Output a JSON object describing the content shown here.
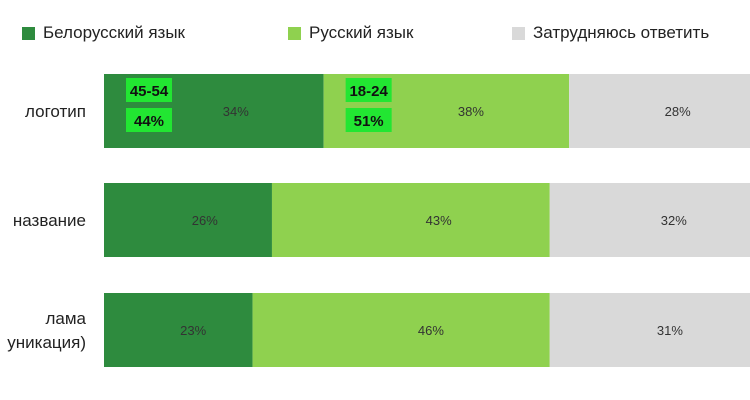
{
  "chart_data": {
    "type": "bar",
    "orientation": "horizontal",
    "stacked": true,
    "normalized_percent": true,
    "categories": [
      "логотип",
      "название",
      "лама\nуникация)"
    ],
    "series": [
      {
        "name": "Белорусский язык",
        "color": "#2e8b3e",
        "values": [
          34,
          26,
          23
        ]
      },
      {
        "name": "Русский язык",
        "color": "#8fd14f",
        "values": [
          38,
          43,
          46
        ]
      },
      {
        "name": "Затрудняюсь ответить",
        "color": "#d9d9d9",
        "values": [
          28,
          32,
          31
        ]
      }
    ],
    "xlim": [
      0,
      100
    ],
    "legend_position": "top",
    "grid": false,
    "annotations": [
      {
        "category": 0,
        "series": 0,
        "lines": [
          "45-54",
          "44%"
        ],
        "highlight_color": "#22e632"
      },
      {
        "category": 0,
        "series": 1,
        "lines": [
          "18-24",
          "51%"
        ],
        "highlight_color": "#22e632"
      }
    ]
  }
}
